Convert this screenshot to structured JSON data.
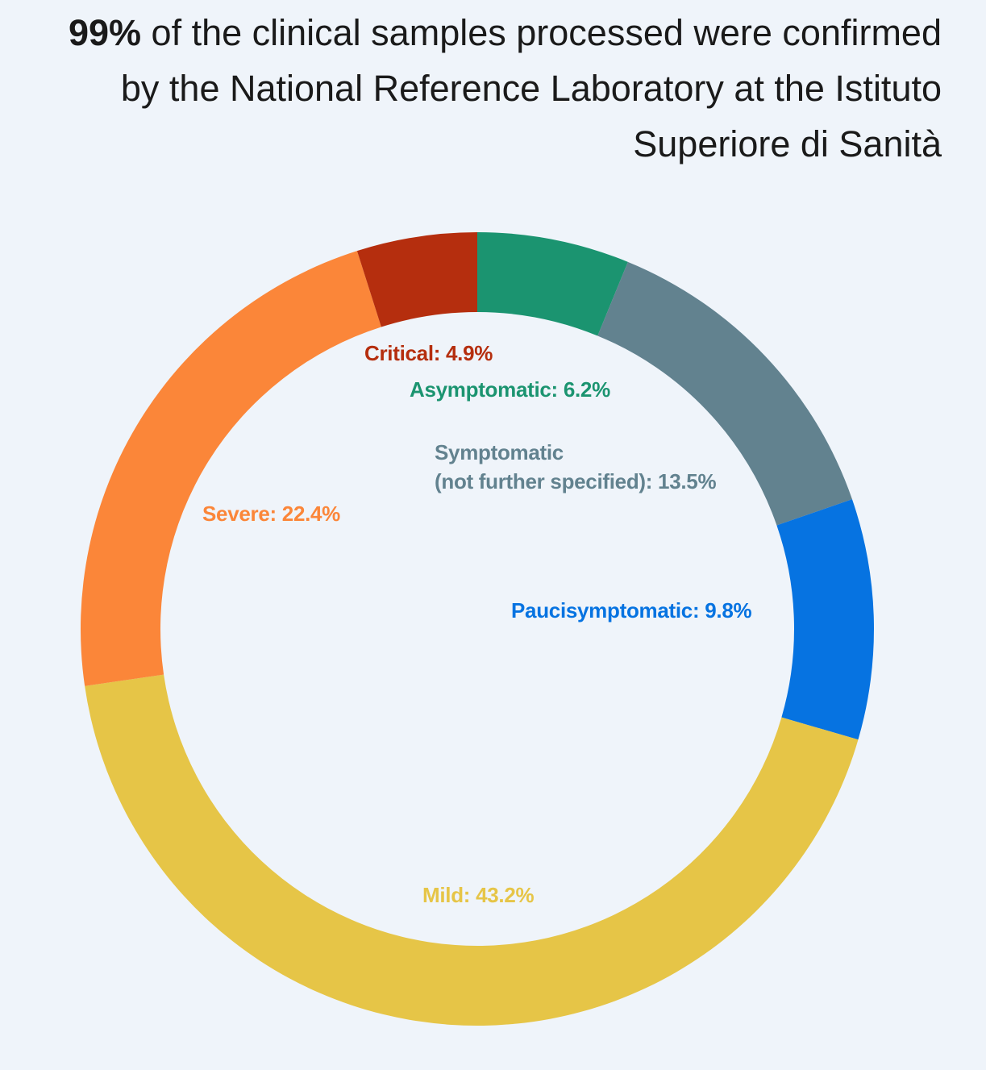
{
  "chart_data": {
    "type": "donut",
    "title_highlight": "99%",
    "title": "of the clinical samples processed were confirmed by the National Reference Laboratory at the Istituto Superiore di Sanità",
    "values": [
      6.2,
      13.5,
      9.8,
      43.2,
      22.4,
      4.9
    ],
    "value_labels": [
      "Asymptomatic: 6.2%",
      "Symptomatic\n(not further specified): 13.5%",
      "Paucisymptomatic: 9.8%",
      "Mild: 43.2%",
      "Severe: 22.4%",
      "Critical: 4.9%"
    ],
    "colors": [
      "#1b9470",
      "#62828f",
      "#0673e1",
      "#e6c547",
      "#fb8639",
      "#b52e0e"
    ]
  }
}
